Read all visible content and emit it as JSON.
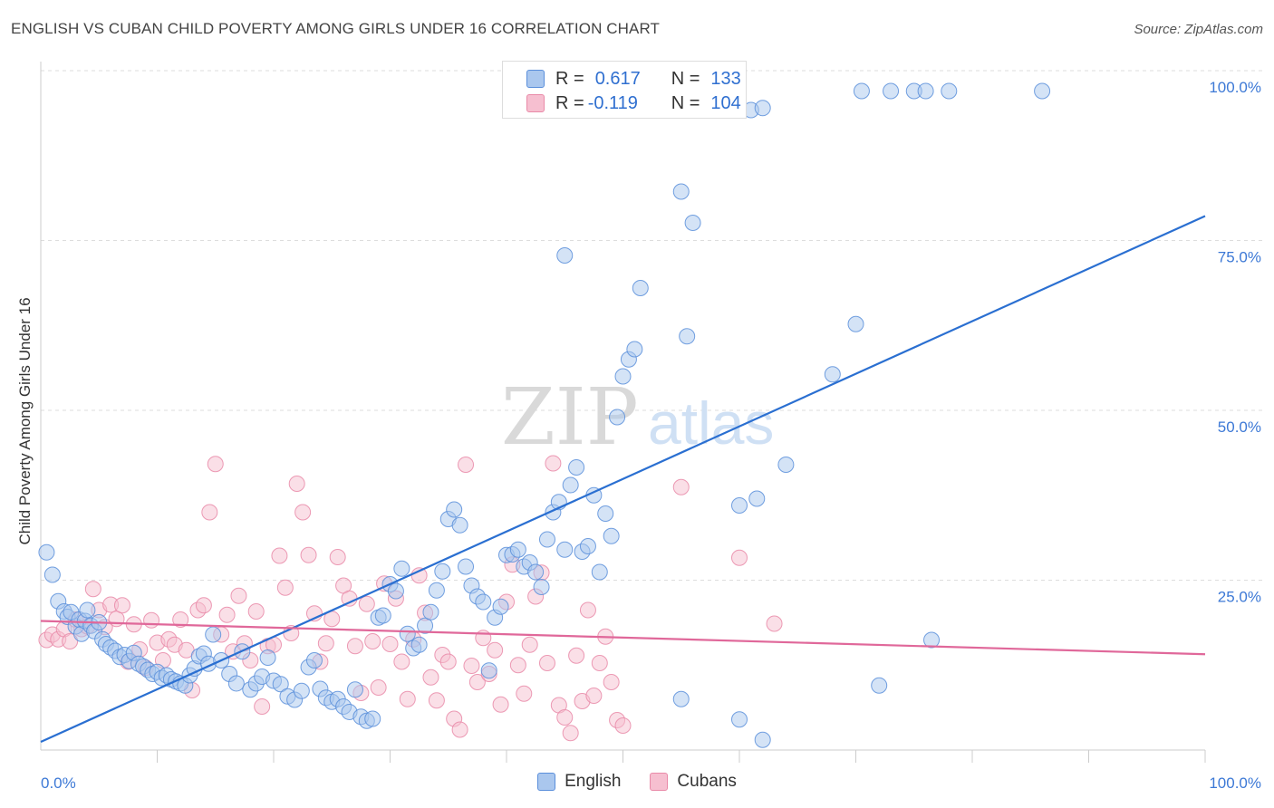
{
  "header": {
    "title": "ENGLISH VS CUBAN CHILD POVERTY AMONG GIRLS UNDER 16 CORRELATION CHART",
    "source": "Source: ZipAtlas.com"
  },
  "watermark": {
    "zip": "ZIP",
    "atlas": "atlas"
  },
  "legend": {
    "rows": [
      {
        "r_label": "R =",
        "r_value": "0.617",
        "n_label": "N =",
        "n_value": "133"
      },
      {
        "r_label": "R =",
        "r_value": "-0.119",
        "n_label": "N =",
        "n_value": "104"
      }
    ]
  },
  "colors": {
    "english_fill": "#aac7ee",
    "english_stroke": "#5b8fdb",
    "english_line": "#2a6fd1",
    "cubans_fill": "#f6bfd0",
    "cubans_stroke": "#e98aa8",
    "cubans_line": "#e0689a",
    "tick_label": "#3d79d6",
    "grid": "#dddddd"
  },
  "chart_data": {
    "type": "scatter",
    "title": "ENGLISH VS CUBAN CHILD POVERTY AMONG GIRLS UNDER 16 CORRELATION CHART",
    "xlabel": "",
    "ylabel": "Child Poverty Among Girls Under 16",
    "xlim": [
      0,
      100
    ],
    "ylim": [
      0,
      100
    ],
    "x_tick_labels": [
      "0.0%",
      "100.0%"
    ],
    "y_tick_values": [
      25,
      50,
      75,
      100
    ],
    "y_tick_labels": [
      "25.0%",
      "50.0%",
      "75.0%",
      "100.0%"
    ],
    "grid": true,
    "legend_position": "top-center",
    "series": [
      {
        "name": "English",
        "r": 0.617,
        "n": 133,
        "trend": {
          "x": [
            0,
            100
          ],
          "y": [
            1.2,
            78.6
          ]
        },
        "points": [
          [
            0.5,
            29.1
          ],
          [
            1.0,
            25.8
          ],
          [
            1.5,
            21.9
          ],
          [
            2.0,
            20.4
          ],
          [
            2.3,
            19.6
          ],
          [
            2.6,
            20.3
          ],
          [
            3.0,
            18.2
          ],
          [
            3.3,
            19.2
          ],
          [
            3.5,
            17.1
          ],
          [
            3.8,
            19.0
          ],
          [
            4.0,
            20.6
          ],
          [
            4.3,
            18.3
          ],
          [
            4.6,
            17.5
          ],
          [
            5.0,
            18.8
          ],
          [
            5.3,
            16.3
          ],
          [
            5.6,
            15.6
          ],
          [
            6.0,
            15.1
          ],
          [
            6.4,
            14.6
          ],
          [
            6.8,
            13.7
          ],
          [
            7.2,
            14.0
          ],
          [
            7.6,
            13.1
          ],
          [
            8.0,
            14.3
          ],
          [
            8.4,
            12.7
          ],
          [
            8.8,
            12.3
          ],
          [
            9.2,
            11.8
          ],
          [
            9.6,
            11.2
          ],
          [
            10.0,
            11.5
          ],
          [
            10.4,
            10.6
          ],
          [
            10.8,
            11.0
          ],
          [
            11.2,
            10.4
          ],
          [
            11.6,
            10.1
          ],
          [
            12.0,
            9.8
          ],
          [
            12.4,
            9.5
          ],
          [
            12.8,
            11.0
          ],
          [
            13.2,
            12.0
          ],
          [
            13.6,
            13.8
          ],
          [
            14.0,
            14.2
          ],
          [
            14.4,
            12.7
          ],
          [
            14.8,
            17.0
          ],
          [
            15.5,
            13.2
          ],
          [
            16.2,
            11.2
          ],
          [
            16.8,
            9.8
          ],
          [
            17.3,
            14.5
          ],
          [
            18.0,
            8.9
          ],
          [
            18.5,
            9.8
          ],
          [
            19.0,
            10.8
          ],
          [
            19.5,
            13.6
          ],
          [
            20.0,
            10.2
          ],
          [
            20.6,
            9.7
          ],
          [
            21.2,
            7.9
          ],
          [
            21.8,
            7.4
          ],
          [
            22.4,
            8.7
          ],
          [
            23.0,
            12.2
          ],
          [
            23.5,
            13.2
          ],
          [
            24.0,
            9.0
          ],
          [
            24.5,
            7.7
          ],
          [
            25.0,
            7.1
          ],
          [
            25.5,
            7.5
          ],
          [
            26.0,
            6.4
          ],
          [
            26.5,
            5.6
          ],
          [
            27.0,
            8.9
          ],
          [
            27.5,
            4.9
          ],
          [
            28.0,
            4.3
          ],
          [
            28.5,
            4.6
          ],
          [
            29.0,
            19.5
          ],
          [
            29.4,
            19.8
          ],
          [
            30.0,
            24.4
          ],
          [
            30.5,
            23.4
          ],
          [
            31.0,
            26.7
          ],
          [
            31.5,
            17.1
          ],
          [
            32.0,
            15.0
          ],
          [
            32.5,
            15.5
          ],
          [
            33.0,
            18.3
          ],
          [
            33.5,
            20.3
          ],
          [
            34.0,
            23.5
          ],
          [
            34.5,
            26.3
          ],
          [
            35.0,
            34.0
          ],
          [
            35.5,
            35.4
          ],
          [
            36.0,
            33.1
          ],
          [
            36.5,
            27.0
          ],
          [
            37.0,
            24.2
          ],
          [
            37.5,
            22.6
          ],
          [
            38.0,
            21.8
          ],
          [
            38.5,
            11.7
          ],
          [
            39.0,
            19.5
          ],
          [
            39.5,
            21.1
          ],
          [
            40.0,
            28.7
          ],
          [
            40.5,
            28.8
          ],
          [
            41.0,
            29.5
          ],
          [
            41.5,
            27.0
          ],
          [
            42.0,
            27.6
          ],
          [
            42.5,
            26.2
          ],
          [
            43.0,
            24.0
          ],
          [
            43.5,
            31.0
          ],
          [
            44.0,
            35.0
          ],
          [
            44.5,
            36.5
          ],
          [
            45.0,
            29.5
          ],
          [
            45.5,
            39.0
          ],
          [
            46.0,
            41.6
          ],
          [
            46.5,
            29.2
          ],
          [
            47.0,
            30.0
          ],
          [
            47.5,
            37.5
          ],
          [
            48.0,
            26.2
          ],
          [
            48.5,
            34.8
          ],
          [
            49.0,
            31.5
          ],
          [
            49.5,
            49.0
          ],
          [
            50.0,
            55.0
          ],
          [
            50.5,
            57.5
          ],
          [
            51.0,
            59.0
          ],
          [
            51.5,
            68.0
          ],
          [
            45.0,
            72.8
          ],
          [
            55.0,
            82.2
          ],
          [
            56.0,
            77.6
          ],
          [
            55.5,
            60.9
          ],
          [
            61.0,
            94.2
          ],
          [
            62.0,
            94.5
          ],
          [
            60.0,
            36.0
          ],
          [
            61.5,
            37.0
          ],
          [
            64.0,
            42.0
          ],
          [
            68.0,
            55.3
          ],
          [
            70.0,
            62.7
          ],
          [
            70.5,
            97.0
          ],
          [
            73.0,
            97.0
          ],
          [
            75.0,
            97.0
          ],
          [
            76.0,
            97.0
          ],
          [
            78.0,
            97.0
          ],
          [
            86.0,
            97.0
          ],
          [
            72.0,
            9.5
          ],
          [
            76.5,
            16.2
          ],
          [
            62.0,
            1.5
          ],
          [
            60.0,
            4.5
          ],
          [
            55.0,
            7.5
          ]
        ]
      },
      {
        "name": "Cubans",
        "r": -0.119,
        "n": 104,
        "trend": {
          "x": [
            0,
            100
          ],
          "y": [
            19.0,
            14.1
          ]
        },
        "points": [
          [
            0.5,
            16.2
          ],
          [
            1.0,
            17.0
          ],
          [
            1.5,
            16.3
          ],
          [
            2.0,
            17.8
          ],
          [
            2.5,
            16.0
          ],
          [
            3.0,
            19.2
          ],
          [
            3.5,
            17.8
          ],
          [
            4.0,
            18.2
          ],
          [
            4.5,
            23.7
          ],
          [
            5.0,
            20.6
          ],
          [
            5.5,
            18.1
          ],
          [
            6.0,
            21.4
          ],
          [
            6.5,
            19.3
          ],
          [
            7.0,
            21.3
          ],
          [
            7.5,
            13.0
          ],
          [
            8.0,
            18.5
          ],
          [
            8.5,
            14.8
          ],
          [
            9.0,
            12.1
          ],
          [
            9.5,
            19.1
          ],
          [
            10.0,
            15.8
          ],
          [
            10.5,
            13.2
          ],
          [
            11.0,
            16.3
          ],
          [
            11.5,
            15.5
          ],
          [
            12.0,
            19.2
          ],
          [
            12.5,
            14.7
          ],
          [
            13.0,
            8.8
          ],
          [
            13.5,
            20.6
          ],
          [
            14.0,
            21.3
          ],
          [
            14.5,
            35.0
          ],
          [
            15.0,
            42.1
          ],
          [
            15.5,
            17.0
          ],
          [
            16.0,
            19.9
          ],
          [
            16.5,
            14.5
          ],
          [
            17.0,
            22.7
          ],
          [
            17.5,
            15.7
          ],
          [
            18.0,
            13.2
          ],
          [
            18.5,
            20.4
          ],
          [
            19.0,
            6.4
          ],
          [
            19.5,
            15.3
          ],
          [
            20.0,
            15.5
          ],
          [
            20.5,
            28.6
          ],
          [
            21.0,
            23.9
          ],
          [
            21.5,
            17.2
          ],
          [
            22.0,
            39.2
          ],
          [
            22.5,
            35.0
          ],
          [
            23.0,
            28.7
          ],
          [
            23.5,
            20.1
          ],
          [
            24.0,
            13.0
          ],
          [
            24.5,
            15.7
          ],
          [
            25.0,
            19.3
          ],
          [
            25.5,
            28.4
          ],
          [
            26.0,
            24.2
          ],
          [
            26.5,
            22.3
          ],
          [
            27.0,
            15.3
          ],
          [
            27.5,
            8.4
          ],
          [
            28.0,
            21.5
          ],
          [
            28.5,
            16.0
          ],
          [
            29.0,
            9.2
          ],
          [
            29.5,
            24.5
          ],
          [
            30.0,
            15.6
          ],
          [
            30.5,
            22.3
          ],
          [
            31.0,
            13.0
          ],
          [
            31.5,
            7.5
          ],
          [
            32.0,
            16.3
          ],
          [
            32.5,
            25.7
          ],
          [
            33.0,
            20.2
          ],
          [
            33.5,
            10.7
          ],
          [
            34.0,
            7.3
          ],
          [
            34.5,
            14.0
          ],
          [
            35.0,
            13.0
          ],
          [
            35.5,
            4.6
          ],
          [
            36.0,
            3.0
          ],
          [
            36.5,
            42.0
          ],
          [
            37.0,
            12.4
          ],
          [
            37.5,
            10.0
          ],
          [
            38.0,
            16.5
          ],
          [
            38.5,
            11.2
          ],
          [
            39.0,
            14.7
          ],
          [
            39.5,
            6.7
          ],
          [
            40.0,
            21.8
          ],
          [
            40.5,
            27.3
          ],
          [
            41.0,
            12.5
          ],
          [
            41.5,
            8.3
          ],
          [
            42.0,
            15.5
          ],
          [
            42.5,
            22.6
          ],
          [
            43.0,
            26.1
          ],
          [
            43.5,
            12.8
          ],
          [
            44.0,
            42.2
          ],
          [
            44.5,
            6.6
          ],
          [
            45.0,
            4.8
          ],
          [
            45.5,
            2.5
          ],
          [
            46.0,
            13.9
          ],
          [
            46.5,
            7.2
          ],
          [
            47.0,
            20.6
          ],
          [
            47.5,
            8.0
          ],
          [
            48.0,
            12.8
          ],
          [
            48.5,
            16.7
          ],
          [
            49.0,
            10.0
          ],
          [
            49.5,
            4.4
          ],
          [
            50.0,
            3.6
          ],
          [
            55.0,
            38.7
          ],
          [
            60.0,
            28.3
          ],
          [
            63.0,
            18.6
          ]
        ]
      }
    ]
  },
  "bottom_legend": {
    "items": [
      {
        "label": "English"
      },
      {
        "label": "Cubans"
      }
    ]
  }
}
